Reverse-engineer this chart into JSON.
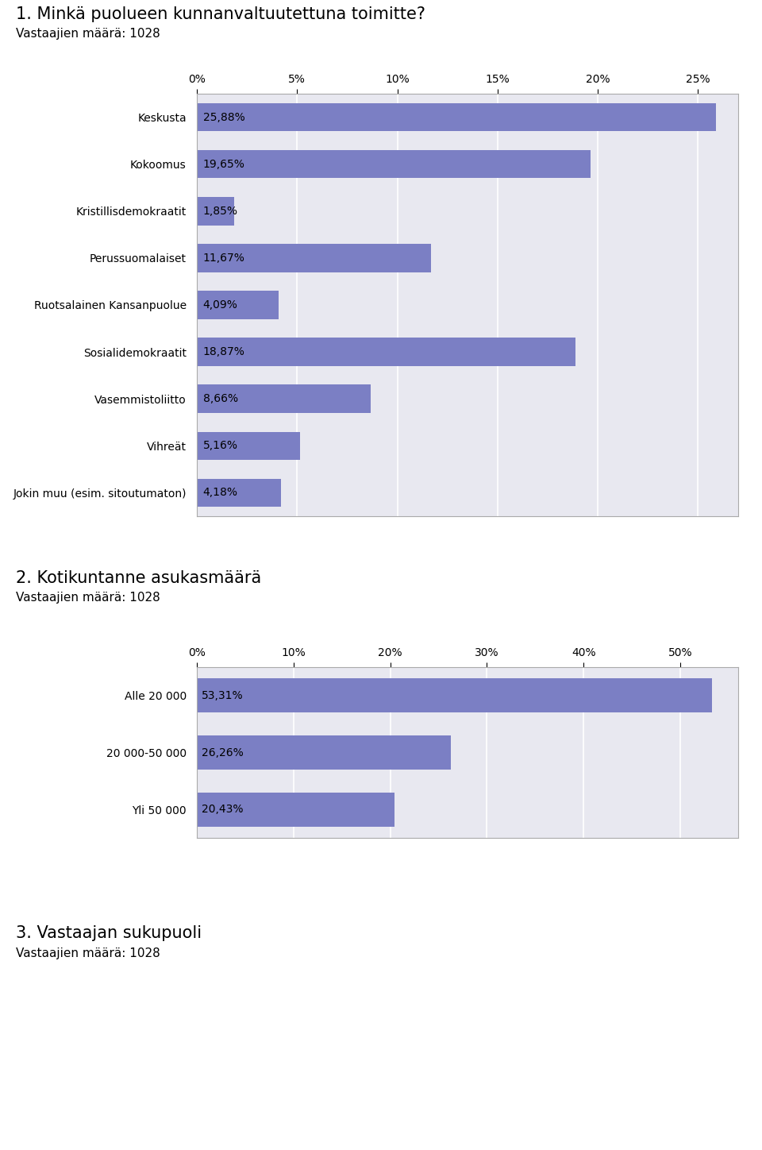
{
  "chart1": {
    "title": "1. Minkä puolueen kunnanvaltuutettuna toimitte?",
    "subtitle": "Vastaajien määrä: 1028",
    "categories": [
      "Keskusta",
      "Kokoomus",
      "Kristillisdemokraatit",
      "Perussuomalaiset",
      "Ruotsalainen Kansanpuolue",
      "Sosialidemokraatit",
      "Vasemmistoliitto",
      "Vihreät",
      "Jokin muu (esim. sitoutumaton)"
    ],
    "values": [
      25.88,
      19.65,
      1.85,
      11.67,
      4.09,
      18.87,
      8.66,
      5.16,
      4.18
    ],
    "labels": [
      "25,88%",
      "19,65%",
      "1,85%",
      "11,67%",
      "4,09%",
      "18,87%",
      "8,66%",
      "5,16%",
      "4,18%"
    ],
    "xlim": [
      0,
      27
    ],
    "xticks": [
      0,
      5,
      10,
      15,
      20,
      25
    ],
    "xticklabels": [
      "0%",
      "5%",
      "10%",
      "15%",
      "20%",
      "25%"
    ],
    "bar_color": "#7b7fc4",
    "bg_color": "#e8e8f0"
  },
  "chart2": {
    "title": "2. Kotikuntanne asukasmäärä",
    "subtitle": "Vastaajien määrä: 1028",
    "categories": [
      "Alle 20 000",
      "20 000-50 000",
      "Yli 50 000"
    ],
    "values": [
      53.31,
      26.26,
      20.43
    ],
    "labels": [
      "53,31%",
      "26,26%",
      "20,43%"
    ],
    "xlim": [
      0,
      56
    ],
    "xticks": [
      0,
      10,
      20,
      30,
      40,
      50
    ],
    "xticklabels": [
      "0%",
      "10%",
      "20%",
      "30%",
      "40%",
      "50%"
    ],
    "bar_color": "#7b7fc4",
    "bg_color": "#e8e8f0"
  },
  "chart3": {
    "title": "3. Vastaajan sukupuoli",
    "subtitle": "Vastaajien määrä: 1028"
  },
  "fig_bg": "#ffffff",
  "title_fontsize": 15,
  "subtitle_fontsize": 11,
  "label_fontsize": 10,
  "tick_fontsize": 10,
  "bar_label_fontsize": 10
}
